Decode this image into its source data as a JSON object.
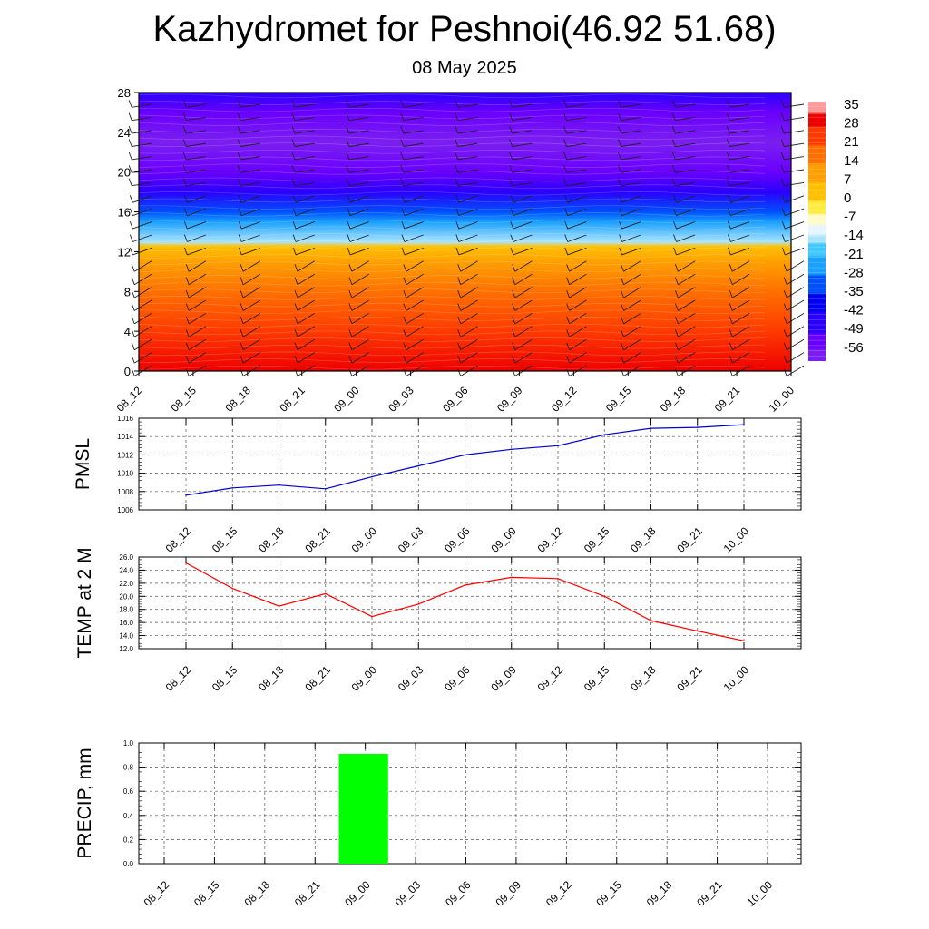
{
  "title": "Kazhydromet for Peshnoi(46.92 51.68)",
  "date": "08 May 2025",
  "x_labels": [
    "08_12",
    "08_15",
    "08_18",
    "08_21",
    "09_00",
    "09_03",
    "09_06",
    "09_09",
    "09_12",
    "09_15",
    "09_18",
    "09_21",
    "10_00"
  ],
  "chart_data": [
    {
      "type": "heatmap",
      "name": "cross-section",
      "x": [
        "08_12",
        "08_15",
        "08_18",
        "08_21",
        "09_00",
        "09_03",
        "09_06",
        "09_09",
        "09_12",
        "09_15",
        "09_18",
        "09_21",
        "10_00"
      ],
      "y_ticks": [
        0,
        4,
        8,
        12,
        16,
        20,
        24,
        28
      ],
      "ylim": [
        0,
        28
      ],
      "colorbar": {
        "labels": [
          "35",
          "28",
          "21",
          "14",
          "7",
          "0",
          "-7",
          "-14",
          "-21",
          "-28",
          "-35",
          "-42",
          "-49",
          "-56"
        ],
        "range": [
          -60,
          38
        ]
      },
      "levels_profile": [
        {
          "y": 0,
          "value": 30
        },
        {
          "y": 4,
          "value": 25
        },
        {
          "y": 8,
          "value": 17
        },
        {
          "y": 11,
          "value": 8
        },
        {
          "y": 12.5,
          "value": 2
        },
        {
          "y": 13,
          "value": -14
        },
        {
          "y": 15,
          "value": -25
        },
        {
          "y": 16,
          "value": -32
        },
        {
          "y": 18,
          "value": -48
        },
        {
          "y": 20,
          "value": -55
        },
        {
          "y": 23,
          "value": -58
        },
        {
          "y": 26,
          "value": -52
        },
        {
          "y": 28,
          "value": -48
        }
      ],
      "wind_barbs": true
    },
    {
      "type": "line",
      "name": "pmsl",
      "ylabel": "PMSL",
      "ylim": [
        1006,
        1016
      ],
      "y_ticks": [
        "1006",
        "1008",
        "1010",
        "1012",
        "1014",
        "1016"
      ],
      "categories": [
        "08_12",
        "08_15",
        "08_18",
        "08_21",
        "09_00",
        "09_03",
        "09_06",
        "09_09",
        "09_12",
        "09_15",
        "09_18",
        "09_21",
        "10_00"
      ],
      "values": [
        1007.6,
        1008.4,
        1008.7,
        1008.3,
        1009.6,
        1010.8,
        1012.0,
        1012.6,
        1013.0,
        1014.2,
        1014.9,
        1015.0,
        1015.3
      ],
      "color": "#0000cc"
    },
    {
      "type": "line",
      "name": "temp2m",
      "ylabel": "TEMP at 2 M",
      "ylim": [
        12,
        26
      ],
      "y_ticks": [
        "12.0",
        "14.0",
        "16.0",
        "18.0",
        "20.0",
        "22.0",
        "24.0",
        "26.0"
      ],
      "categories": [
        "08_12",
        "08_15",
        "08_18",
        "08_21",
        "09_00",
        "09_03",
        "09_06",
        "09_09",
        "09_12",
        "09_15",
        "09_18",
        "09_21",
        "10_00"
      ],
      "values": [
        25.1,
        21.2,
        18.5,
        20.4,
        16.9,
        18.8,
        21.7,
        22.9,
        22.7,
        20.0,
        16.3,
        14.7,
        13.2
      ],
      "color": "#ff0000"
    },
    {
      "type": "bar",
      "name": "precip",
      "ylabel": "PRECIP, mm",
      "ylim": [
        0,
        1
      ],
      "y_ticks": [
        "0.0",
        "0.2",
        "0.4",
        "0.6",
        "0.8",
        "1.0"
      ],
      "categories": [
        "08_12",
        "08_15",
        "08_18",
        "08_21",
        "09_00",
        "09_03",
        "09_06",
        "09_09",
        "09_12",
        "09_15",
        "09_18",
        "09_21",
        "10_00"
      ],
      "values": [
        0,
        0,
        0,
        0,
        0.91,
        0,
        0,
        0,
        0,
        0,
        0,
        0,
        0
      ],
      "color": "#00ff00"
    }
  ]
}
